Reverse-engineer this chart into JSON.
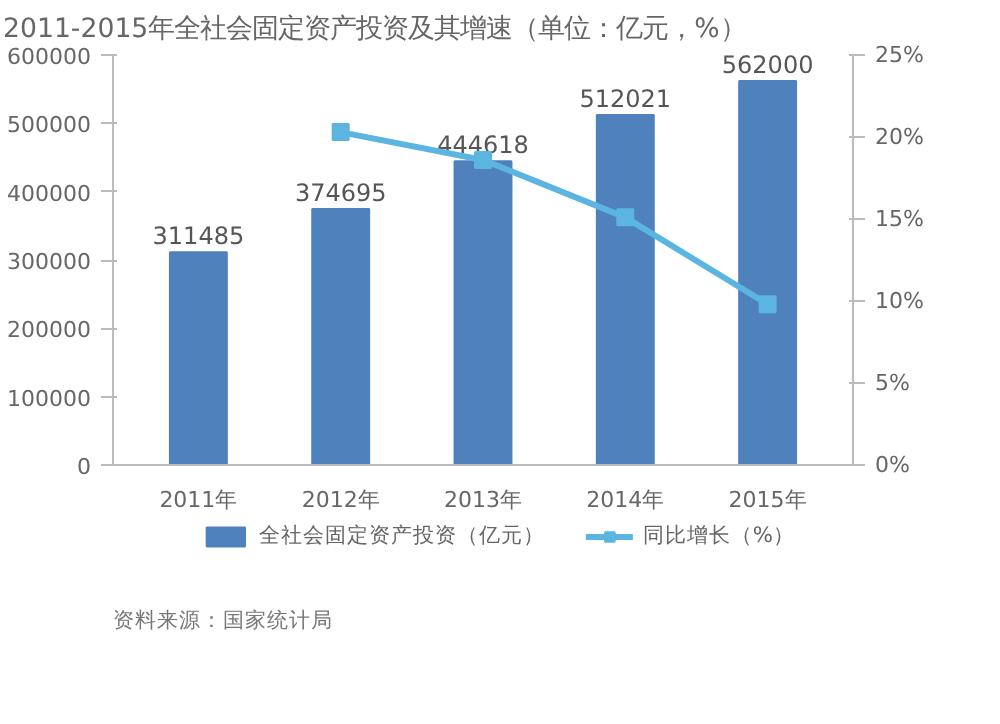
{
  "chart_data": {
    "type": "bar",
    "title": "2011-2015年全社会固定资产投资及其增速（单位：亿元，%）",
    "categories": [
      "2011年",
      "2012年",
      "2013年",
      "2014年",
      "2015年"
    ],
    "series": [
      {
        "name": "全社会固定资产投资（亿元）",
        "color": "#4f81bd",
        "values": [
          311485,
          374695,
          444618,
          512021,
          562000
        ],
        "value_labels": [
          "311485",
          "374695",
          "444618",
          "512021",
          "562000"
        ]
      },
      {
        "name": "同比增长（%）",
        "type": "line",
        "axis": "y2",
        "color": "#5bb5e0",
        "marker": "square",
        "values": [
          null,
          20.3,
          18.6,
          15.1,
          9.8
        ]
      }
    ],
    "ylim": [
      0,
      600000
    ],
    "yticks": [
      0,
      100000,
      200000,
      300000,
      400000,
      500000,
      600000
    ],
    "y2lim": [
      0,
      25
    ],
    "y2ticks": [
      {
        "value": 0,
        "label": "0%"
      },
      {
        "value": 5,
        "label": "5%"
      },
      {
        "value": 10,
        "label": "10%"
      },
      {
        "value": 15,
        "label": "15%"
      },
      {
        "value": 20,
        "label": "20%"
      },
      {
        "value": 25,
        "label": "25%"
      }
    ],
    "grid": false,
    "legend": "bottom",
    "annotations": [
      "资料来源：国家统计局"
    ]
  }
}
